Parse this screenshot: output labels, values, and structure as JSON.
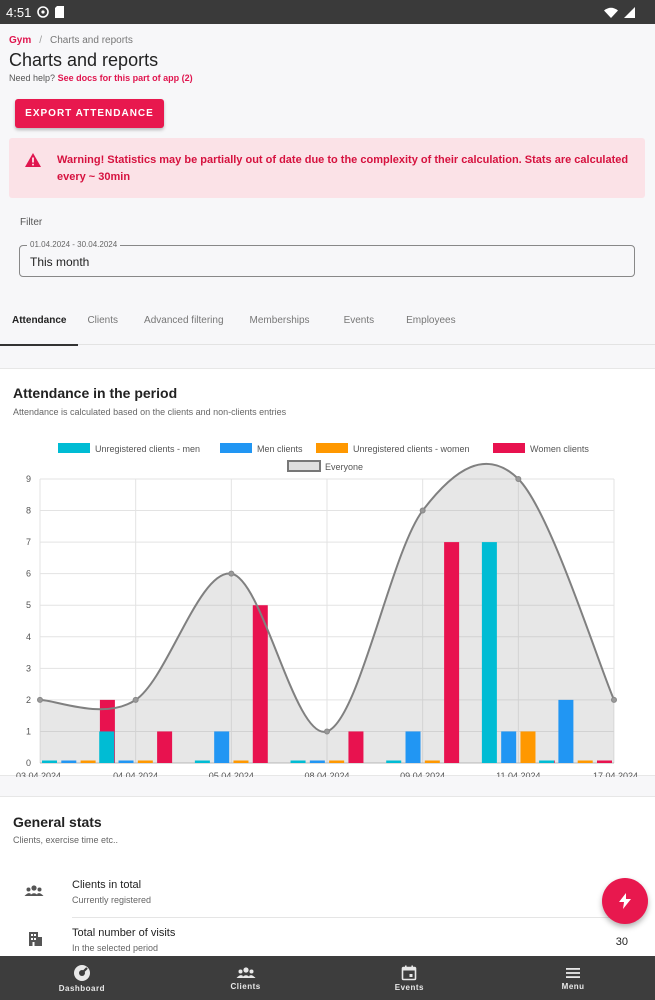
{
  "status_bar": {
    "time": "4:51"
  },
  "breadcrumb": {
    "root": "Gym",
    "separator": "/",
    "current": "Charts and reports"
  },
  "page": {
    "title": "Charts and reports",
    "help_text": "Need help?",
    "help_link": "See docs for this part of app (2)"
  },
  "actions": {
    "export_label": "EXPORT ATTENDANCE"
  },
  "warning": {
    "text": "Warning! Statistics may be partially out of date due to the complexity of their calculation. Stats are calculated every ~ 30min"
  },
  "filter": {
    "label": "Filter",
    "range": "01.04.2024 - 30.04.2024",
    "value": "This month"
  },
  "tabs": [
    {
      "label": "Attendance",
      "active": true
    },
    {
      "label": "Clients",
      "active": false
    },
    {
      "label": "Advanced filtering",
      "active": false
    },
    {
      "label": "Memberships",
      "active": false
    },
    {
      "label": "Events",
      "active": false
    },
    {
      "label": "Employees",
      "active": false
    }
  ],
  "attendance_card": {
    "title": "Attendance in the period",
    "subtitle": "Attendance is calculated based on the clients and non-clients entries"
  },
  "chart_data": {
    "type": "bar",
    "categories": [
      "03.04.2024",
      "04.04.2024",
      "05.04.2024",
      "08.04.2024",
      "09.04.2024",
      "11.04.2024",
      "17.04.2024"
    ],
    "series": [
      {
        "name": "Unregistered clients - men",
        "color": "#00bcd4",
        "values": [
          0,
          1,
          0,
          0,
          0,
          7,
          0
        ]
      },
      {
        "name": "Men clients",
        "color": "#2196f3",
        "values": [
          0,
          0,
          1,
          0,
          1,
          1,
          2
        ]
      },
      {
        "name": "Unregistered clients - women",
        "color": "#ff9800",
        "values": [
          0,
          0,
          0,
          0,
          0,
          1,
          0
        ]
      },
      {
        "name": "Women clients",
        "color": "#e8124f",
        "values": [
          2,
          1,
          5,
          1,
          7,
          0,
          0
        ]
      }
    ],
    "line_series": {
      "name": "Everyone",
      "type": "area",
      "color": "#808080",
      "values": [
        2,
        2,
        6,
        1,
        8,
        9,
        2
      ]
    },
    "y_ticks": [
      0,
      1,
      2,
      3,
      4,
      5,
      6,
      7,
      8,
      9
    ],
    "ylim": [
      0,
      9
    ],
    "grid": true,
    "legend": "top"
  },
  "general_stats": {
    "title": "General stats",
    "subtitle": "Clients, exercise time etc..",
    "rows": [
      {
        "label": "Clients in total",
        "sub": "Currently registered",
        "value": "",
        "icon": "group-icon"
      },
      {
        "label": "Total number of visits",
        "sub": "In the selected period",
        "value": "30",
        "icon": "building-icon"
      }
    ]
  },
  "bottom_nav": [
    {
      "label": "Dashboard",
      "icon": "dashboard-icon"
    },
    {
      "label": "Clients",
      "icon": "group-icon"
    },
    {
      "label": "Events",
      "icon": "calendar-icon"
    },
    {
      "label": "Menu",
      "icon": "menu-icon"
    }
  ]
}
